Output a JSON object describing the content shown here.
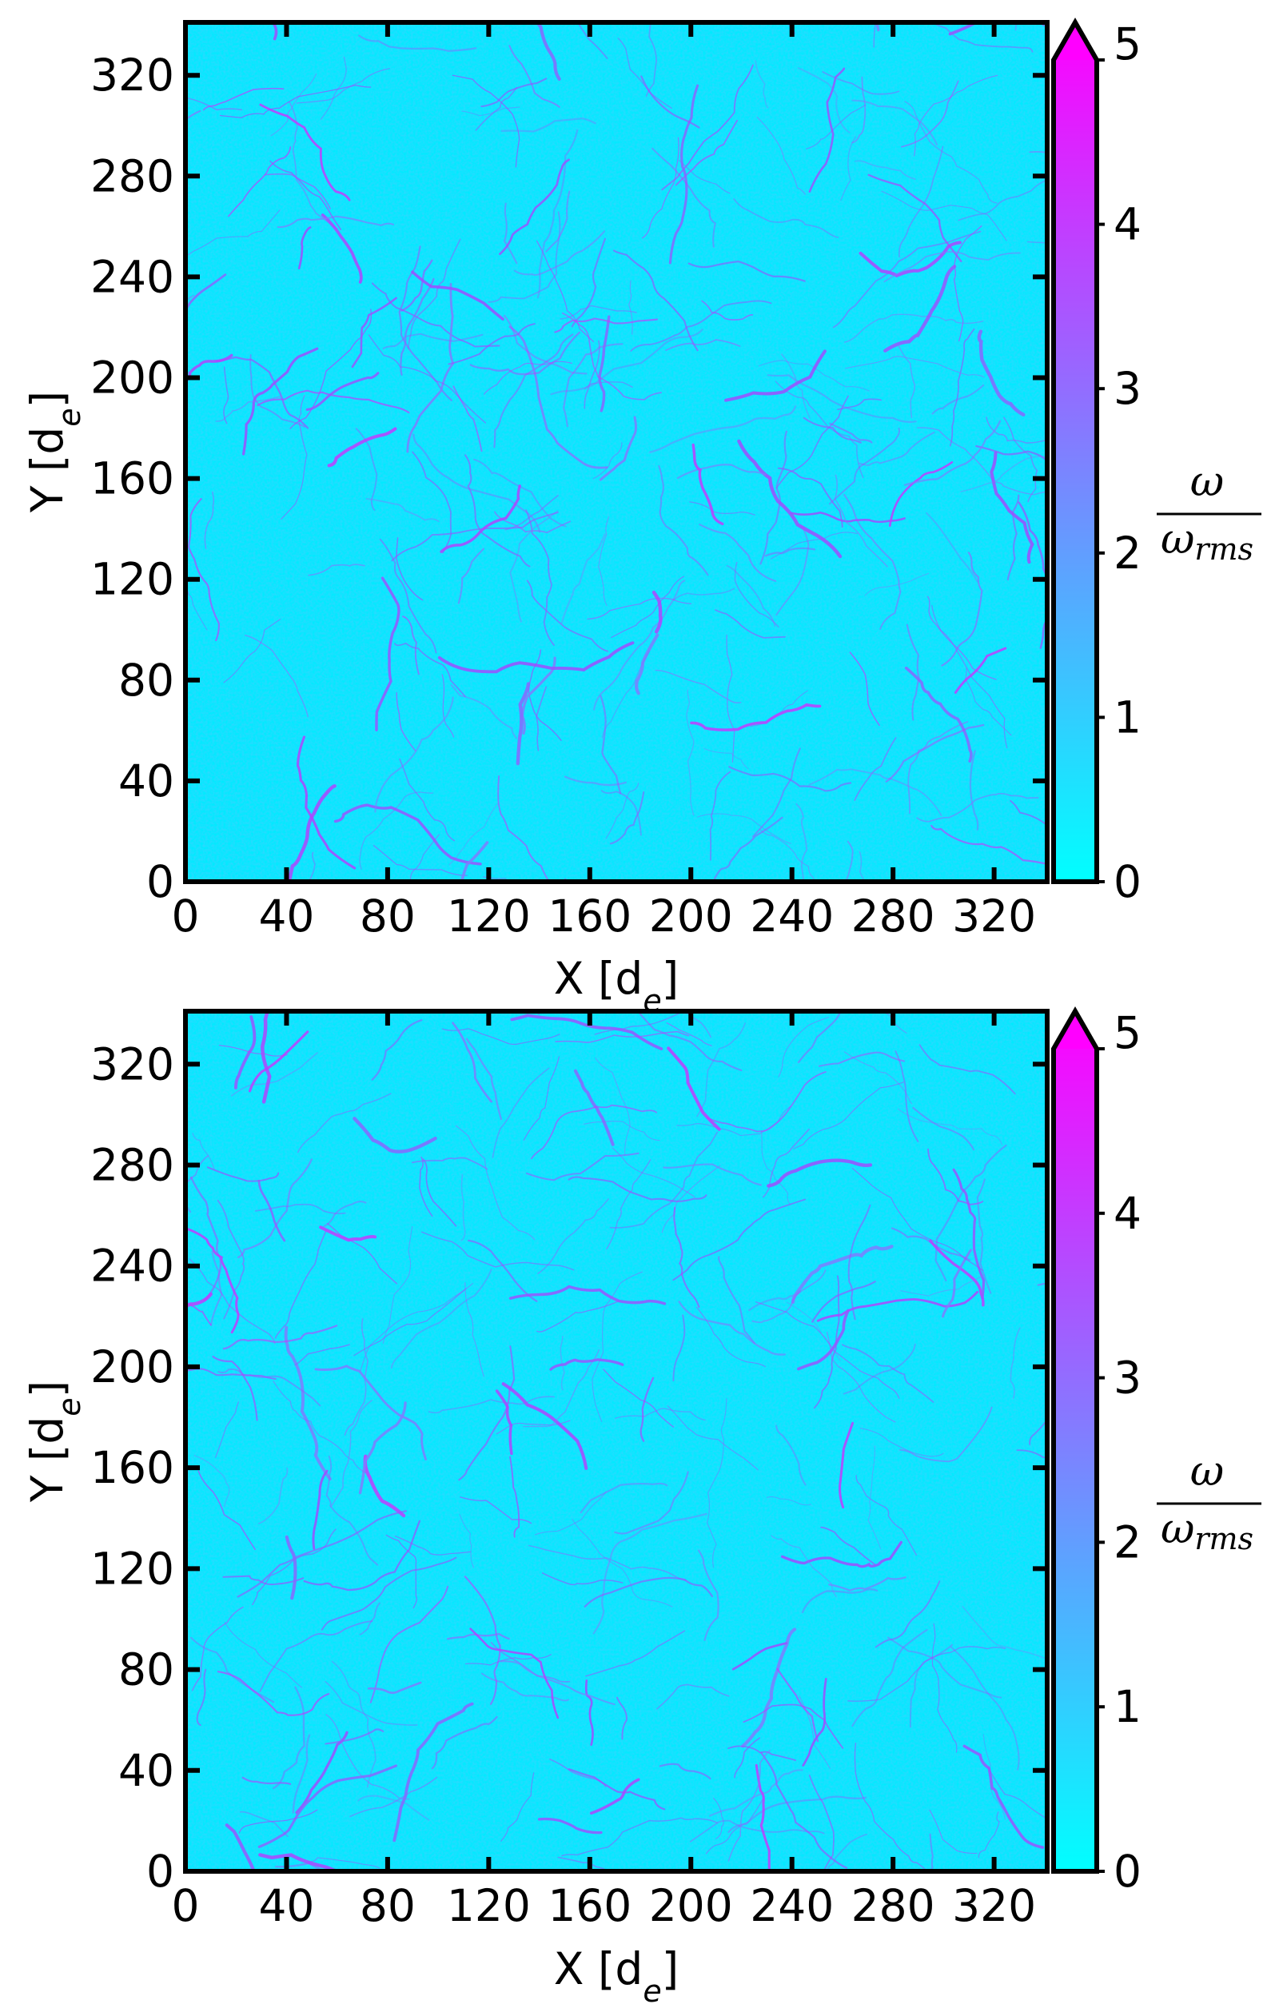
{
  "chart_data": [
    {
      "type": "heatmap",
      "title": "",
      "xlabel": "X [d_e]",
      "ylabel": "Y [d_e]",
      "x_ticks": [
        0,
        40,
        80,
        120,
        160,
        200,
        240,
        280,
        320
      ],
      "y_ticks": [
        0,
        40,
        80,
        120,
        160,
        200,
        240,
        280,
        320
      ],
      "xlim": [
        0,
        341
      ],
      "ylim": [
        0,
        341
      ],
      "colorbar": {
        "label": "ω / ω_rms",
        "ticks": [
          0,
          1,
          2,
          3,
          4,
          5
        ],
        "range": [
          0,
          5
        ],
        "extend": "max",
        "colormap": "cool",
        "colors": [
          "#00ffff",
          "#ff00ff"
        ]
      },
      "field": "normalized vorticity ω/ω_rms, turbulent field, mostly 0–1 with filamentary structures up to ~4"
    },
    {
      "type": "heatmap",
      "title": "",
      "xlabel": "X [d_e]",
      "ylabel": "Y [d_e]",
      "x_ticks": [
        0,
        40,
        80,
        120,
        160,
        200,
        240,
        280,
        320
      ],
      "y_ticks": [
        0,
        40,
        80,
        120,
        160,
        200,
        240,
        280,
        320
      ],
      "xlim": [
        0,
        341
      ],
      "ylim": [
        0,
        341
      ],
      "colorbar": {
        "label": "ω / ω_rms",
        "ticks": [
          0,
          1,
          2,
          3,
          4,
          5
        ],
        "range": [
          0,
          5
        ],
        "extend": "max",
        "colormap": "cool",
        "colors": [
          "#00ffff",
          "#ff00ff"
        ]
      },
      "field": "normalized vorticity ω/ω_rms, turbulent field, mostly 0–1 with filamentary structures up to ~4"
    }
  ],
  "labels": {
    "x_main": "X [d",
    "x_sub": "e",
    "x_close": "]",
    "y_main": "Y [d",
    "y_sub": "e",
    "y_close": "]",
    "cb_num": "ω",
    "cb_den": "ω",
    "cb_den_sub": "rms"
  }
}
